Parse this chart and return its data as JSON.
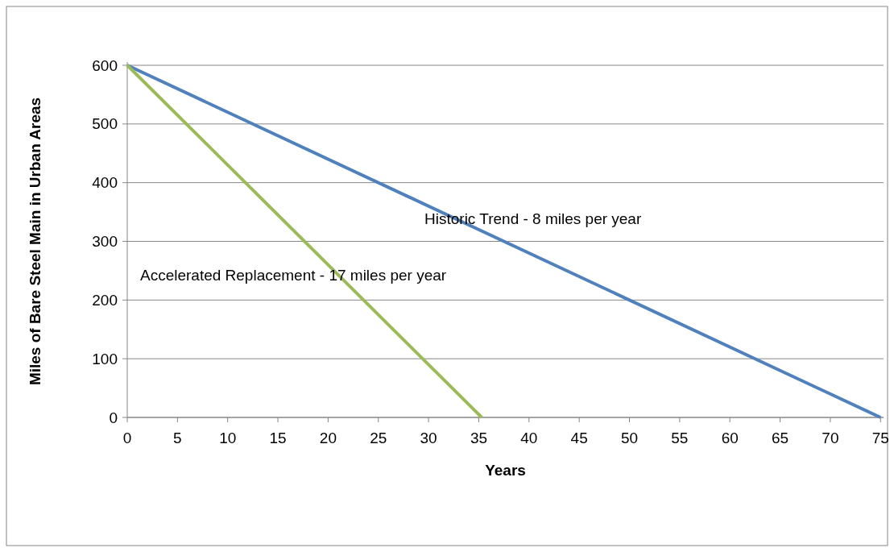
{
  "chart_data": {
    "type": "line",
    "xlabel": "Years",
    "ylabel": "Miles of Bare Steel Main in Urban Areas",
    "xlim": [
      0,
      75.3
    ],
    "xticks": [
      0,
      5,
      10,
      15,
      20,
      25,
      30,
      35,
      40,
      45,
      50,
      55,
      60,
      65,
      70,
      75
    ],
    "ylim": [
      0,
      600
    ],
    "yticks": [
      0,
      100,
      200,
      300,
      400,
      500,
      600
    ],
    "grid": "y",
    "legend": false,
    "marker": "none",
    "line_style": "solid",
    "series": [
      {
        "name": "Historic Trend - 8 miles per year",
        "color": "#4f81bd",
        "x": [
          0,
          75
        ],
        "values": [
          600,
          0
        ]
      },
      {
        "name": "Accelerated Replacement - 17 miles per year",
        "color": "#9bbb59",
        "x": [
          0,
          35.3
        ],
        "values": [
          600,
          0
        ]
      }
    ]
  }
}
